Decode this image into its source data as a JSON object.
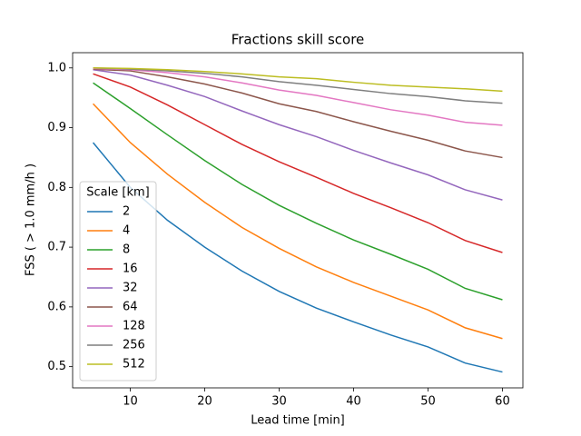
{
  "chart_data": {
    "type": "line",
    "title": "Fractions skill score",
    "x_label": "Lead time [min]",
    "y_label": "FSS ( > 1.0 mm/h )",
    "x": [
      5,
      10,
      15,
      20,
      25,
      30,
      35,
      40,
      45,
      50,
      55,
      60
    ],
    "xlim": [
      2.25,
      62.75
    ],
    "xticks": [
      10,
      20,
      30,
      40,
      50,
      60
    ],
    "ylim": [
      0.4645,
      1.0255
    ],
    "yticks": [
      0.5,
      0.6,
      0.7,
      0.8,
      0.9,
      {
        "value": 1,
        "label": "1.0"
      }
    ],
    "legend_title": "Scale [km]",
    "legend": "lower left",
    "series": [
      {
        "name": "2",
        "color": "#1f77b4",
        "values": [
          0.875,
          0.8,
          0.745,
          0.7,
          0.66,
          0.626,
          0.598,
          0.575,
          0.553,
          0.533,
          0.506,
          0.491
        ]
      },
      {
        "name": "4",
        "color": "#ff7f0e",
        "values": [
          0.94,
          0.875,
          0.822,
          0.775,
          0.733,
          0.698,
          0.667,
          0.641,
          0.618,
          0.595,
          0.565,
          0.547
        ]
      },
      {
        "name": "8",
        "color": "#2ca02c",
        "values": [
          0.975,
          0.932,
          0.888,
          0.845,
          0.805,
          0.77,
          0.74,
          0.712,
          0.688,
          0.663,
          0.631,
          0.612
        ]
      },
      {
        "name": "16",
        "color": "#d62728",
        "values": [
          0.99,
          0.968,
          0.938,
          0.905,
          0.872,
          0.843,
          0.817,
          0.79,
          0.766,
          0.741,
          0.711,
          0.691
        ]
      },
      {
        "name": "32",
        "color": "#9467bd",
        "values": [
          0.997,
          0.988,
          0.971,
          0.952,
          0.928,
          0.905,
          0.885,
          0.862,
          0.841,
          0.821,
          0.796,
          0.779
        ]
      },
      {
        "name": "64",
        "color": "#8c564b",
        "values": [
          0.998,
          0.995,
          0.985,
          0.973,
          0.958,
          0.94,
          0.927,
          0.91,
          0.894,
          0.879,
          0.861,
          0.85
        ]
      },
      {
        "name": "128",
        "color": "#e377c2",
        "values": [
          0.999,
          0.997,
          0.992,
          0.985,
          0.975,
          0.963,
          0.954,
          0.942,
          0.93,
          0.921,
          0.909,
          0.904
        ]
      },
      {
        "name": "256",
        "color": "#7f7f7f",
        "values": [
          1.0,
          0.998,
          0.995,
          0.991,
          0.985,
          0.977,
          0.971,
          0.964,
          0.957,
          0.952,
          0.945,
          0.941
        ]
      },
      {
        "name": "512",
        "color": "#bcbd22",
        "values": [
          1.0,
          0.999,
          0.997,
          0.994,
          0.99,
          0.985,
          0.982,
          0.976,
          0.971,
          0.968,
          0.965,
          0.961
        ]
      }
    ]
  }
}
